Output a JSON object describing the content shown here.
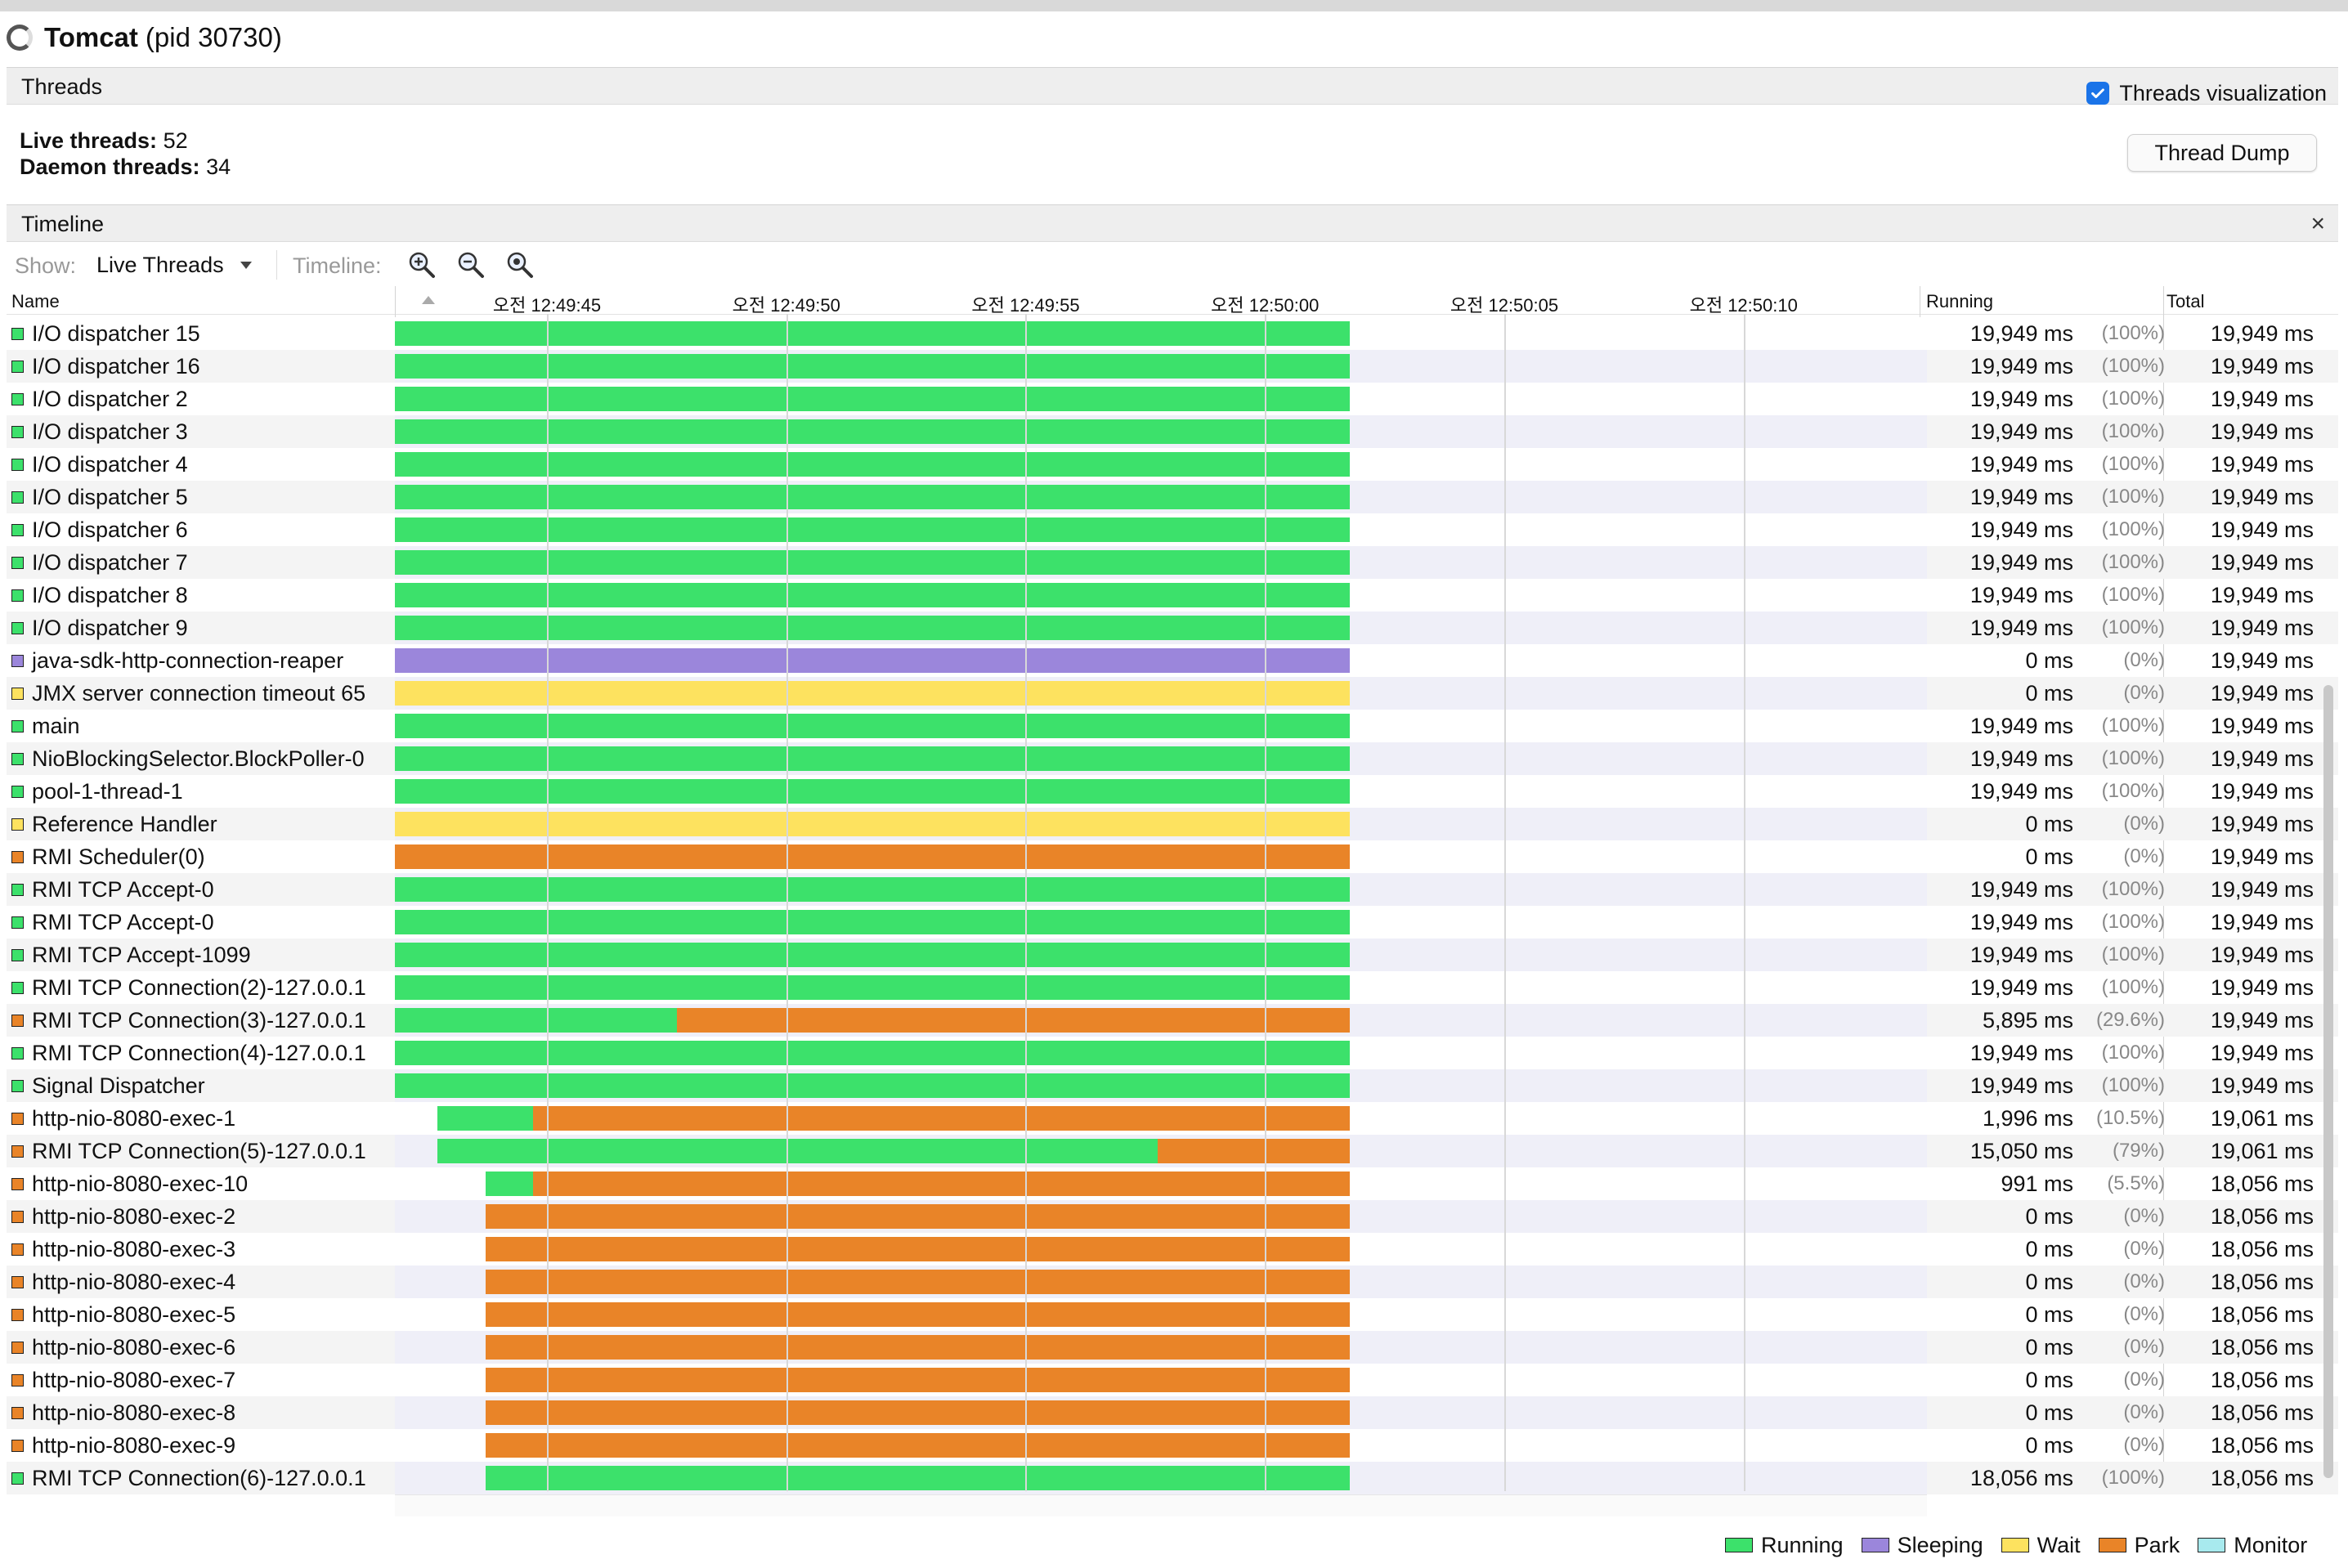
{
  "app": {
    "name": "Tomcat",
    "pid_text": "(pid 30730)"
  },
  "threads_section": {
    "title": "Threads",
    "viz_label": "Threads visualization",
    "viz_checked": true,
    "live_label": "Live threads:",
    "live_value": "52",
    "daemon_label": "Daemon threads:",
    "daemon_value": "34",
    "dump_button": "Thread Dump"
  },
  "timeline_section": {
    "title": "Timeline",
    "close_glyph": "×",
    "show_label": "Show:",
    "show_value": "Live Threads",
    "timeline_label": "Timeline:",
    "zoom_icons": [
      "zoom-in-icon",
      "zoom-out-icon",
      "zoom-fit-icon"
    ]
  },
  "columns": {
    "name": "Name",
    "running": "Running",
    "total": "Total"
  },
  "time_ticks": [
    "오전 12:49:45",
    "오전 12:49:50",
    "오전 12:49:55",
    "오전 12:50:00",
    "오전 12:50:05",
    "오전 12:50:10"
  ],
  "state_colors": {
    "running": "#3ce16b",
    "sleeping": "#9b86db",
    "wait": "#fde25f",
    "park": "#e98428",
    "monitor": "#a8eaee"
  },
  "legend": [
    {
      "label": "Running",
      "state": "running"
    },
    {
      "label": "Sleeping",
      "state": "sleeping"
    },
    {
      "label": "Wait",
      "state": "wait"
    },
    {
      "label": "Park",
      "state": "park"
    },
    {
      "label": "Monitor",
      "state": "monitor"
    }
  ],
  "threads": [
    {
      "name": "I/O dispatcher 15",
      "state": "running",
      "running": "19,949 ms",
      "pct": "(100%)",
      "total": "19,949 ms",
      "segments": [
        [
          "running",
          0,
          19.949
        ]
      ]
    },
    {
      "name": "I/O dispatcher 16",
      "state": "running",
      "running": "19,949 ms",
      "pct": "(100%)",
      "total": "19,949 ms",
      "segments": [
        [
          "running",
          0,
          19.949
        ]
      ]
    },
    {
      "name": "I/O dispatcher 2",
      "state": "running",
      "running": "19,949 ms",
      "pct": "(100%)",
      "total": "19,949 ms",
      "segments": [
        [
          "running",
          0,
          19.949
        ]
      ]
    },
    {
      "name": "I/O dispatcher 3",
      "state": "running",
      "running": "19,949 ms",
      "pct": "(100%)",
      "total": "19,949 ms",
      "segments": [
        [
          "running",
          0,
          19.949
        ]
      ]
    },
    {
      "name": "I/O dispatcher 4",
      "state": "running",
      "running": "19,949 ms",
      "pct": "(100%)",
      "total": "19,949 ms",
      "segments": [
        [
          "running",
          0,
          19.949
        ]
      ]
    },
    {
      "name": "I/O dispatcher 5",
      "state": "running",
      "running": "19,949 ms",
      "pct": "(100%)",
      "total": "19,949 ms",
      "segments": [
        [
          "running",
          0,
          19.949
        ]
      ]
    },
    {
      "name": "I/O dispatcher 6",
      "state": "running",
      "running": "19,949 ms",
      "pct": "(100%)",
      "total": "19,949 ms",
      "segments": [
        [
          "running",
          0,
          19.949
        ]
      ]
    },
    {
      "name": "I/O dispatcher 7",
      "state": "running",
      "running": "19,949 ms",
      "pct": "(100%)",
      "total": "19,949 ms",
      "segments": [
        [
          "running",
          0,
          19.949
        ]
      ]
    },
    {
      "name": "I/O dispatcher 8",
      "state": "running",
      "running": "19,949 ms",
      "pct": "(100%)",
      "total": "19,949 ms",
      "segments": [
        [
          "running",
          0,
          19.949
        ]
      ]
    },
    {
      "name": "I/O dispatcher 9",
      "state": "running",
      "running": "19,949 ms",
      "pct": "(100%)",
      "total": "19,949 ms",
      "segments": [
        [
          "running",
          0,
          19.949
        ]
      ]
    },
    {
      "name": "java-sdk-http-connection-reaper",
      "state": "sleeping",
      "running": "0 ms",
      "pct": "(0%)",
      "total": "19,949 ms",
      "segments": [
        [
          "sleeping",
          0,
          19.949
        ]
      ]
    },
    {
      "name": "JMX server connection timeout 65",
      "state": "wait",
      "running": "0 ms",
      "pct": "(0%)",
      "total": "19,949 ms",
      "segments": [
        [
          "wait",
          0,
          19.949
        ]
      ]
    },
    {
      "name": "main",
      "state": "running",
      "running": "19,949 ms",
      "pct": "(100%)",
      "total": "19,949 ms",
      "segments": [
        [
          "running",
          0,
          19.949
        ]
      ]
    },
    {
      "name": "NioBlockingSelector.BlockPoller-0",
      "state": "running",
      "running": "19,949 ms",
      "pct": "(100%)",
      "total": "19,949 ms",
      "segments": [
        [
          "running",
          0,
          19.949
        ]
      ]
    },
    {
      "name": "pool-1-thread-1",
      "state": "running",
      "running": "19,949 ms",
      "pct": "(100%)",
      "total": "19,949 ms",
      "segments": [
        [
          "running",
          0,
          19.949
        ]
      ]
    },
    {
      "name": "Reference Handler",
      "state": "wait",
      "running": "0 ms",
      "pct": "(0%)",
      "total": "19,949 ms",
      "segments": [
        [
          "wait",
          0,
          19.949
        ]
      ]
    },
    {
      "name": "RMI Scheduler(0)",
      "state": "park",
      "running": "0 ms",
      "pct": "(0%)",
      "total": "19,949 ms",
      "segments": [
        [
          "park",
          0,
          19.949
        ]
      ]
    },
    {
      "name": "RMI TCP Accept-0",
      "state": "running",
      "running": "19,949 ms",
      "pct": "(100%)",
      "total": "19,949 ms",
      "segments": [
        [
          "running",
          0,
          19.949
        ]
      ]
    },
    {
      "name": "RMI TCP Accept-0",
      "state": "running",
      "running": "19,949 ms",
      "pct": "(100%)",
      "total": "19,949 ms",
      "segments": [
        [
          "running",
          0,
          19.949
        ]
      ]
    },
    {
      "name": "RMI TCP Accept-1099",
      "state": "running",
      "running": "19,949 ms",
      "pct": "(100%)",
      "total": "19,949 ms",
      "segments": [
        [
          "running",
          0,
          19.949
        ]
      ]
    },
    {
      "name": "RMI TCP Connection(2)-127.0.0.1",
      "state": "running",
      "running": "19,949 ms",
      "pct": "(100%)",
      "total": "19,949 ms",
      "segments": [
        [
          "running",
          0,
          19.949
        ]
      ]
    },
    {
      "name": "RMI TCP Connection(3)-127.0.0.1",
      "state": "park",
      "running": "5,895 ms",
      "pct": "(29.6%)",
      "total": "19,949 ms",
      "segments": [
        [
          "running",
          0,
          5.895
        ],
        [
          "park",
          5.895,
          19.949
        ]
      ]
    },
    {
      "name": "RMI TCP Connection(4)-127.0.0.1",
      "state": "running",
      "running": "19,949 ms",
      "pct": "(100%)",
      "total": "19,949 ms",
      "segments": [
        [
          "running",
          0,
          19.949
        ]
      ]
    },
    {
      "name": "Signal Dispatcher",
      "state": "running",
      "running": "19,949 ms",
      "pct": "(100%)",
      "total": "19,949 ms",
      "segments": [
        [
          "running",
          0,
          19.949
        ]
      ]
    },
    {
      "name": "http-nio-8080-exec-1",
      "state": "park",
      "running": "1,996 ms",
      "pct": "(10.5%)",
      "total": "19,061 ms",
      "segments": [
        [
          "running",
          0.888,
          2.884
        ],
        [
          "park",
          2.884,
          19.949
        ]
      ]
    },
    {
      "name": "RMI TCP Connection(5)-127.0.0.1",
      "state": "park",
      "running": "15,050 ms",
      "pct": "(79%)",
      "total": "19,061 ms",
      "segments": [
        [
          "running",
          0.888,
          15.938
        ],
        [
          "park",
          15.938,
          19.949
        ]
      ]
    },
    {
      "name": "http-nio-8080-exec-10",
      "state": "park",
      "running": "991 ms",
      "pct": "(5.5%)",
      "total": "18,056 ms",
      "segments": [
        [
          "running",
          1.893,
          2.884
        ],
        [
          "park",
          2.884,
          19.949
        ]
      ]
    },
    {
      "name": "http-nio-8080-exec-2",
      "state": "park",
      "running": "0 ms",
      "pct": "(0%)",
      "total": "18,056 ms",
      "segments": [
        [
          "park",
          1.893,
          19.949
        ]
      ]
    },
    {
      "name": "http-nio-8080-exec-3",
      "state": "park",
      "running": "0 ms",
      "pct": "(0%)",
      "total": "18,056 ms",
      "segments": [
        [
          "park",
          1.893,
          19.949
        ]
      ]
    },
    {
      "name": "http-nio-8080-exec-4",
      "state": "park",
      "running": "0 ms",
      "pct": "(0%)",
      "total": "18,056 ms",
      "segments": [
        [
          "park",
          1.893,
          19.949
        ]
      ]
    },
    {
      "name": "http-nio-8080-exec-5",
      "state": "park",
      "running": "0 ms",
      "pct": "(0%)",
      "total": "18,056 ms",
      "segments": [
        [
          "park",
          1.893,
          19.949
        ]
      ]
    },
    {
      "name": "http-nio-8080-exec-6",
      "state": "park",
      "running": "0 ms",
      "pct": "(0%)",
      "total": "18,056 ms",
      "segments": [
        [
          "park",
          1.893,
          19.949
        ]
      ]
    },
    {
      "name": "http-nio-8080-exec-7",
      "state": "park",
      "running": "0 ms",
      "pct": "(0%)",
      "total": "18,056 ms",
      "segments": [
        [
          "park",
          1.893,
          19.949
        ]
      ]
    },
    {
      "name": "http-nio-8080-exec-8",
      "state": "park",
      "running": "0 ms",
      "pct": "(0%)",
      "total": "18,056 ms",
      "segments": [
        [
          "park",
          1.893,
          19.949
        ]
      ]
    },
    {
      "name": "http-nio-8080-exec-9",
      "state": "park",
      "running": "0 ms",
      "pct": "(0%)",
      "total": "18,056 ms",
      "segments": [
        [
          "park",
          1.893,
          19.949
        ]
      ]
    },
    {
      "name": "RMI TCP Connection(6)-127.0.0.1",
      "state": "running",
      "running": "18,056 ms",
      "pct": "(100%)",
      "total": "18,056 ms",
      "segments": [
        [
          "running",
          1.893,
          19.949
        ]
      ]
    }
  ]
}
